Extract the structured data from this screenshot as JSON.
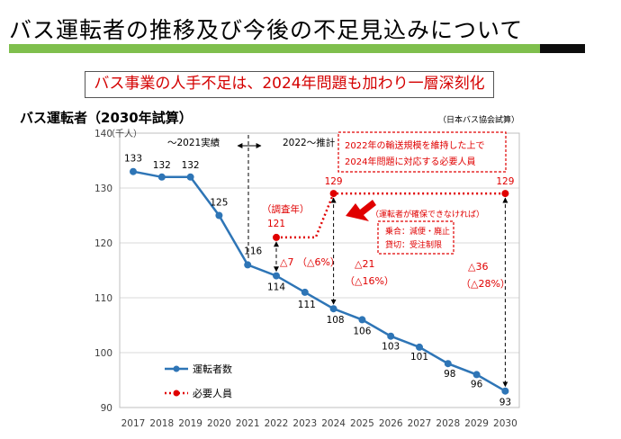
{
  "slide": {
    "title": "バス運転者の推移及び今後の不足見込みについて",
    "headline": "バス事業の人手不足は、2024年問題も加わり一層深刻化",
    "chart_title": "バス運転者（2030年試算）",
    "source": "（日本バス協会試算）"
  },
  "colors": {
    "driver": "#2e75b6",
    "required": "#e00000",
    "green_bar": "#7fbf4d"
  },
  "chart_data": {
    "type": "line",
    "x": [
      2017,
      2018,
      2019,
      2020,
      2021,
      2022,
      2023,
      2024,
      2025,
      2026,
      2027,
      2028,
      2029,
      2030
    ],
    "ylim": [
      90,
      140
    ],
    "yticks": [
      90,
      100,
      110,
      120,
      130,
      140
    ],
    "ylabel": "（千人）",
    "series": [
      {
        "name": "運転者数",
        "style": "solid-marker",
        "x": [
          2017,
          2018,
          2019,
          2020,
          2021,
          2022,
          2023,
          2024,
          2025,
          2026,
          2027,
          2028,
          2029,
          2030
        ],
        "values": [
          133,
          132,
          132,
          125,
          116,
          114,
          111,
          108,
          106,
          103,
          101,
          98,
          96,
          93
        ],
        "labels": [
          "133",
          "132",
          "132",
          "125",
          "116",
          "114",
          "111",
          "108",
          "106",
          "103",
          "101",
          "98",
          "96",
          "93"
        ]
      },
      {
        "name": "必要人員",
        "style": "dotted-marker",
        "x": [
          2022,
          2023,
          2024,
          2030
        ],
        "values": [
          121,
          121,
          129,
          129
        ],
        "markers": [
          2022,
          2024,
          2030
        ],
        "labels": [
          "121",
          "129",
          "129"
        ]
      }
    ],
    "periods": {
      "actual": "～2021実績",
      "estimate": "2022～推計"
    },
    "notes": {
      "survey_year": "（調査年）",
      "requirement_line1": "2022年の輸送規模を維持した上で",
      "requirement_line2": "2024年問題に対応する必要人員",
      "shortfall_intro": "（運転者が確保できなければ）",
      "impact_line1": "乗合：減便・廃止",
      "impact_line2": "貸切：受注制限"
    },
    "gaps": [
      {
        "value": "△7",
        "pct": "（△6%）"
      },
      {
        "value": "△21",
        "pct": "（△16%）"
      },
      {
        "value": "△36",
        "pct": "（△28%）"
      }
    ],
    "legend_position": "bottom-left"
  }
}
